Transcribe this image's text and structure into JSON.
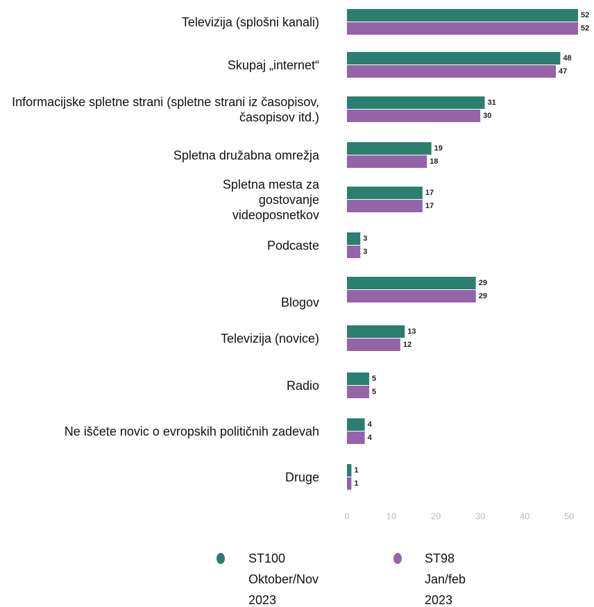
{
  "chart_data": {
    "type": "hbar",
    "categories": [
      "Televizija (splošni kanali)",
      "Skupaj „internet“",
      "Informacijske spletne strani (spletne strani iz časopisov, časopisov itd.)",
      "Spletna družabna omrežja",
      "Spletna mesta za gostovanje videoposnetkov",
      "Podcaste",
      "Blogov",
      "Televizija (novice)",
      "Radio",
      "Ne iščete novic o evropskih političnih zadevah",
      "Druge"
    ],
    "series": [
      {
        "name": "ST100 Oktober/Nov 2023",
        "color": "#2a7f6f",
        "values": [
          52,
          48,
          31,
          19,
          17,
          3,
          29,
          13,
          5,
          4,
          1
        ]
      },
      {
        "name": "ST98 Jan/feb 2023",
        "color": "#9563a8",
        "values": [
          52,
          47,
          30,
          18,
          17,
          3,
          29,
          12,
          5,
          4,
          1
        ]
      }
    ],
    "xlim": [
      0,
      52
    ],
    "xticks": [
      0,
      10,
      20,
      30,
      40,
      50
    ]
  }
}
